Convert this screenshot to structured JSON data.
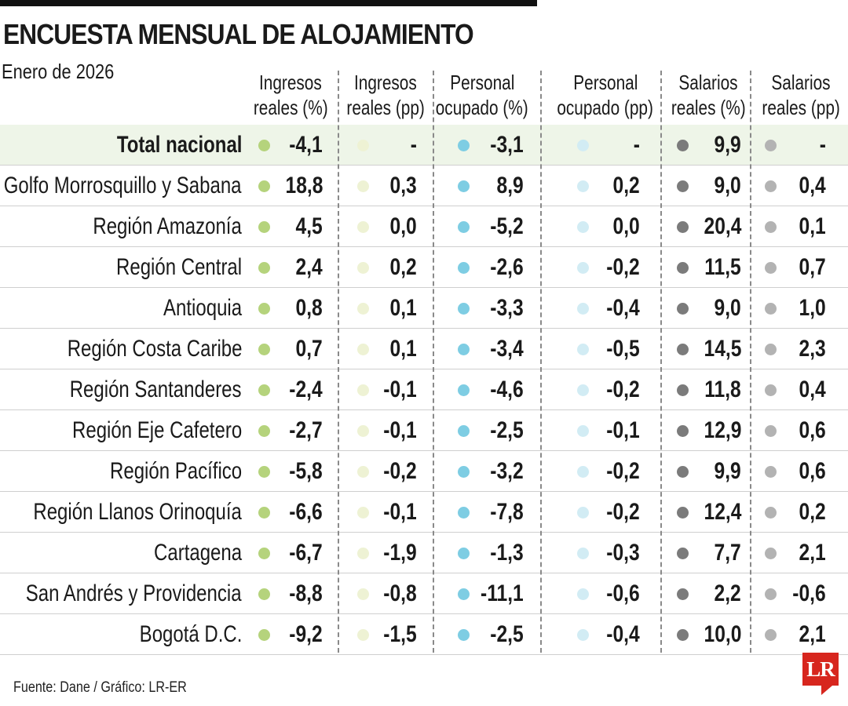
{
  "title": "ENCUESTA MENSUAL DE ALOJAMIENTO",
  "subtitle": "Enero de 2026",
  "source": "Fuente: Dane / Gráfico: LR-ER",
  "logo": "LR",
  "colors": {
    "ingresos_pct": "#b5d37c",
    "ingresos_pp": "#eef2d4",
    "personal_pct": "#7ecde3",
    "personal_pp": "#d2ecf4",
    "salarios_pct": "#7b7b7b",
    "salarios_pp": "#b3b3b3",
    "total_row_bg": "#eef5e8",
    "logo": "#d7261e"
  },
  "chart_data": {
    "type": "table",
    "title": "ENCUESTA MENSUAL DE ALOJAMIENTO",
    "subtitle": "Enero de 2026",
    "columns": [
      {
        "key": "ingresos_pct",
        "line1": "Ingresos",
        "line2": "reales (%)"
      },
      {
        "key": "ingresos_pp",
        "line1": "Ingresos",
        "line2": "reales (pp)"
      },
      {
        "key": "personal_pct",
        "line1": "Personal",
        "line2": "ocupado (%)"
      },
      {
        "key": "personal_pp",
        "line1": "Personal",
        "line2": "ocupado (pp)"
      },
      {
        "key": "salarios_pct",
        "line1": "Salarios",
        "line2": "reales (%)"
      },
      {
        "key": "salarios_pp",
        "line1": "Salarios",
        "line2": "reales (pp)"
      }
    ],
    "rows": [
      {
        "region": "Total nacional",
        "values": [
          "-4,1",
          "-",
          "-3,1",
          "-",
          "9,9",
          "-"
        ]
      },
      {
        "region": "Golfo Morrosquillo y Sabana",
        "values": [
          "18,8",
          "0,3",
          "8,9",
          "0,2",
          "9,0",
          "0,4"
        ]
      },
      {
        "region": "Región Amazonía",
        "values": [
          "4,5",
          "0,0",
          "-5,2",
          "0,0",
          "20,4",
          "0,1"
        ]
      },
      {
        "region": "Región Central",
        "values": [
          "2,4",
          "0,2",
          "-2,6",
          "-0,2",
          "11,5",
          "0,7"
        ]
      },
      {
        "region": "Antioquia",
        "values": [
          "0,8",
          "0,1",
          "-3,3",
          "-0,4",
          "9,0",
          "1,0"
        ]
      },
      {
        "region": "Región Costa Caribe",
        "values": [
          "0,7",
          "0,1",
          "-3,4",
          "-0,5",
          "14,5",
          "2,3"
        ]
      },
      {
        "region": "Región Santanderes",
        "values": [
          "-2,4",
          "-0,1",
          "-4,6",
          "-0,2",
          "11,8",
          "0,4"
        ]
      },
      {
        "region": "Región Eje Cafetero",
        "values": [
          "-2,7",
          "-0,1",
          "-2,5",
          "-0,1",
          "12,9",
          "0,6"
        ]
      },
      {
        "region": "Región Pacífico",
        "values": [
          "-5,8",
          "-0,2",
          "-3,2",
          "-0,2",
          "9,9",
          "0,6"
        ]
      },
      {
        "region": "Región Llanos Orinoquía",
        "values": [
          "-6,6",
          "-0,1",
          "-7,8",
          "-0,2",
          "12,4",
          "0,2"
        ]
      },
      {
        "region": "Cartagena",
        "values": [
          "-6,7",
          "-1,9",
          "-1,3",
          "-0,3",
          "7,7",
          "2,1"
        ]
      },
      {
        "region": "San Andrés y Providencia",
        "values": [
          "-8,8",
          "-0,8",
          "-11,1",
          "-0,6",
          "2,2",
          "-0,6"
        ]
      },
      {
        "region": "Bogotá D.C.",
        "values": [
          "-9,2",
          "-1,5",
          "-2,5",
          "-0,4",
          "10,0",
          "2,1"
        ]
      }
    ]
  }
}
